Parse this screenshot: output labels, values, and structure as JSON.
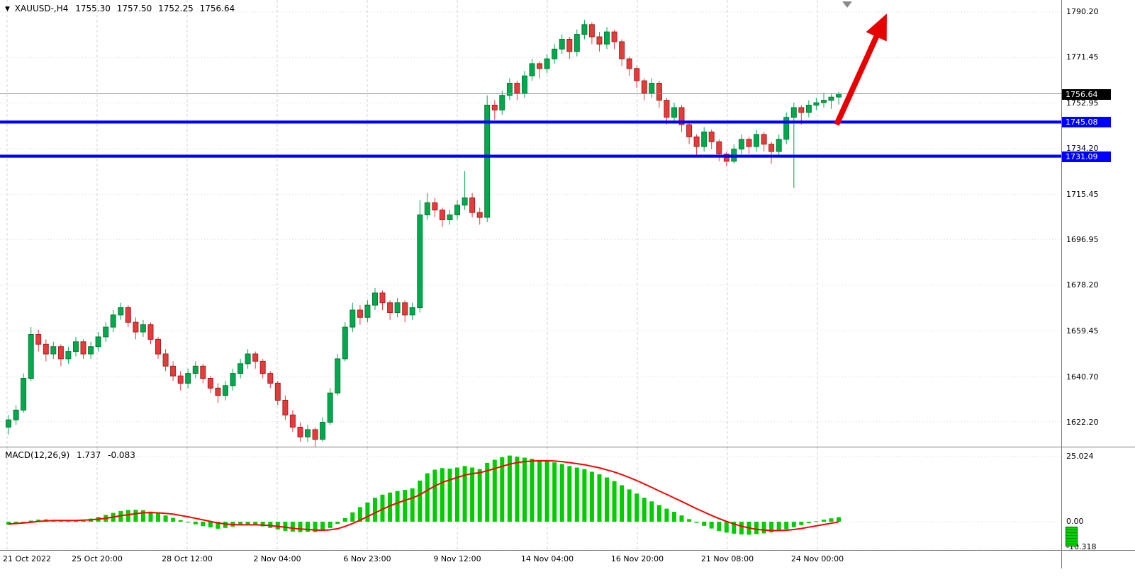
{
  "header": {
    "title": "XAUUSD-,H4",
    "open": "1755.30",
    "high": "1757.50",
    "low": "1752.25",
    "close": "1756.64"
  },
  "icons": {
    "symbol_marker": "▼"
  },
  "colors": {
    "up": "#00a94f",
    "up_border": "#0e7a32",
    "down": "#e43b3b",
    "down_border": "#a82222",
    "hline": "#0000ff",
    "arrow": "#e80000",
    "histogram": "#00cc00",
    "signal": "#ff0000",
    "grid": "#d6d6d6",
    "last_price_line": "#8c8c8c"
  },
  "chart_data": {
    "type": "candlestick",
    "symbol": "XAUUSD-",
    "timeframe": "H4",
    "ylim": [
      1612.0,
      1795.1
    ],
    "y_axis_labels": [
      "1790.20",
      "1771.45",
      "1752.95",
      "1734.20",
      "1715.45",
      "1696.95",
      "1678.20",
      "1659.45",
      "1640.70",
      "1622.20"
    ],
    "x_axis_labels": [
      "21 Oct 2022",
      "25 Oct 20:00",
      "28 Oct 12:00",
      "2 Nov 04:00",
      "6 Nov 23:00",
      "9 Nov 12:00",
      "14 Nov 04:00",
      "16 Nov 20:00",
      "21 Nov 08:00",
      "24 Nov 00:00"
    ],
    "last_price": 1756.64,
    "last_price_label": "1756.64",
    "horizontal_lines": [
      {
        "price": 1745.08,
        "label": "1745.08"
      },
      {
        "price": 1731.09,
        "label": "1731.09"
      }
    ],
    "annotation": {
      "type": "arrow-up",
      "color": "#e80000"
    },
    "candles": [
      [
        1620,
        1625,
        1617,
        1623
      ],
      [
        1623,
        1629,
        1621,
        1627
      ],
      [
        1627,
        1642,
        1626,
        1640
      ],
      [
        1640,
        1661,
        1639,
        1658
      ],
      [
        1658,
        1660,
        1651,
        1654
      ],
      [
        1654,
        1656,
        1647,
        1650
      ],
      [
        1650,
        1655,
        1648,
        1653
      ],
      [
        1653,
        1654,
        1645,
        1648
      ],
      [
        1648,
        1653,
        1646,
        1651
      ],
      [
        1651,
        1657,
        1649,
        1655
      ],
      [
        1655,
        1656,
        1648,
        1650
      ],
      [
        1650,
        1655,
        1648,
        1653
      ],
      [
        1653,
        1659,
        1651,
        1657
      ],
      [
        1657,
        1663,
        1655,
        1661
      ],
      [
        1661,
        1668,
        1659,
        1666
      ],
      [
        1666,
        1671,
        1664,
        1669
      ],
      [
        1669,
        1670,
        1661,
        1663
      ],
      [
        1663,
        1665,
        1656,
        1659
      ],
      [
        1659,
        1664,
        1657,
        1662
      ],
      [
        1662,
        1663,
        1654,
        1656
      ],
      [
        1656,
        1657,
        1648,
        1650
      ],
      [
        1650,
        1652,
        1643,
        1645
      ],
      [
        1645,
        1647,
        1639,
        1641
      ],
      [
        1641,
        1643,
        1635,
        1638
      ],
      [
        1638,
        1644,
        1636,
        1642
      ],
      [
        1642,
        1647,
        1640,
        1645
      ],
      [
        1645,
        1646,
        1638,
        1640
      ],
      [
        1640,
        1641,
        1634,
        1636
      ],
      [
        1636,
        1638,
        1630,
        1633
      ],
      [
        1633,
        1639,
        1631,
        1637
      ],
      [
        1637,
        1644,
        1635,
        1642
      ],
      [
        1642,
        1648,
        1640,
        1646
      ],
      [
        1646,
        1652,
        1644,
        1650
      ],
      [
        1650,
        1651,
        1644,
        1647
      ],
      [
        1647,
        1648,
        1640,
        1642
      ],
      [
        1642,
        1643,
        1636,
        1638
      ],
      [
        1638,
        1639,
        1629,
        1631
      ],
      [
        1631,
        1633,
        1623,
        1625
      ],
      [
        1625,
        1627,
        1618,
        1620
      ],
      [
        1620,
        1622,
        1614,
        1616
      ],
      [
        1616,
        1621,
        1614,
        1619
      ],
      [
        1619,
        1620,
        1612,
        1615
      ],
      [
        1615,
        1624,
        1614,
        1622
      ],
      [
        1622,
        1636,
        1621,
        1634
      ],
      [
        1634,
        1650,
        1633,
        1648
      ],
      [
        1648,
        1663,
        1647,
        1661
      ],
      [
        1661,
        1671,
        1659,
        1668
      ],
      [
        1668,
        1670,
        1662,
        1665
      ],
      [
        1665,
        1672,
        1663,
        1670
      ],
      [
        1670,
        1677,
        1668,
        1675
      ],
      [
        1675,
        1676,
        1668,
        1671
      ],
      [
        1671,
        1672,
        1664,
        1667
      ],
      [
        1667,
        1673,
        1665,
        1671
      ],
      [
        1671,
        1672,
        1663,
        1666
      ],
      [
        1666,
        1671,
        1664,
        1669
      ],
      [
        1669,
        1713,
        1667,
        1707
      ],
      [
        1707,
        1716,
        1705,
        1712
      ],
      [
        1712,
        1714,
        1706,
        1709
      ],
      [
        1709,
        1710,
        1702,
        1705
      ],
      [
        1705,
        1709,
        1703,
        1707
      ],
      [
        1707,
        1713,
        1705,
        1711
      ],
      [
        1711,
        1725,
        1709,
        1714
      ],
      [
        1714,
        1716,
        1706,
        1708
      ],
      [
        1708,
        1710,
        1703,
        1706
      ],
      [
        1706,
        1756,
        1704,
        1752
      ],
      [
        1752,
        1754,
        1746,
        1750
      ],
      [
        1750,
        1758,
        1748,
        1756
      ],
      [
        1756,
        1763,
        1754,
        1761
      ],
      [
        1761,
        1762,
        1754,
        1757
      ],
      [
        1757,
        1766,
        1755,
        1764
      ],
      [
        1764,
        1771,
        1762,
        1769
      ],
      [
        1769,
        1770,
        1763,
        1767
      ],
      [
        1767,
        1773,
        1765,
        1771
      ],
      [
        1771,
        1777,
        1769,
        1775
      ],
      [
        1775,
        1781,
        1773,
        1779
      ],
      [
        1779,
        1780,
        1771,
        1774
      ],
      [
        1774,
        1783,
        1772,
        1781
      ],
      [
        1781,
        1787,
        1779,
        1785
      ],
      [
        1785,
        1786,
        1777,
        1780
      ],
      [
        1780,
        1782,
        1774,
        1777
      ],
      [
        1777,
        1784,
        1775,
        1782
      ],
      [
        1782,
        1783,
        1775,
        1778
      ],
      [
        1778,
        1779,
        1768,
        1771
      ],
      [
        1771,
        1772,
        1764,
        1767
      ],
      [
        1767,
        1768,
        1759,
        1762
      ],
      [
        1762,
        1763,
        1754,
        1757
      ],
      [
        1757,
        1763,
        1755,
        1761
      ],
      [
        1761,
        1762,
        1751,
        1754
      ],
      [
        1754,
        1755,
        1744,
        1747
      ],
      [
        1747,
        1753,
        1745,
        1751
      ],
      [
        1751,
        1752,
        1741,
        1744
      ],
      [
        1744,
        1745,
        1736,
        1739
      ],
      [
        1739,
        1740,
        1731,
        1735
      ],
      [
        1735,
        1743,
        1733,
        1741
      ],
      [
        1741,
        1742,
        1734,
        1737
      ],
      [
        1737,
        1738,
        1729,
        1732
      ],
      [
        1732,
        1733,
        1727,
        1729
      ],
      [
        1729,
        1736,
        1728,
        1734
      ],
      [
        1734,
        1740,
        1732,
        1738
      ],
      [
        1738,
        1739,
        1732,
        1735
      ],
      [
        1735,
        1742,
        1733,
        1740
      ],
      [
        1740,
        1741,
        1733,
        1736
      ],
      [
        1736,
        1737,
        1728,
        1733
      ],
      [
        1733,
        1740,
        1731,
        1738
      ],
      [
        1738,
        1749,
        1736,
        1747
      ],
      [
        1747,
        1753,
        1718,
        1751
      ],
      [
        1751,
        1752,
        1744,
        1749
      ],
      [
        1749,
        1754,
        1747,
        1752
      ],
      [
        1752,
        1755,
        1750,
        1753
      ],
      [
        1753,
        1757,
        1751,
        1754
      ],
      [
        1754,
        1756.5,
        1750.5,
        1755.3
      ],
      [
        1755.3,
        1757.5,
        1752.25,
        1756.64
      ]
    ],
    "indicator": {
      "name": "MACD",
      "params": "12,26,9",
      "label": "MACD(12,26,9)",
      "value": "1.737",
      "signal_value": "-0.083",
      "y_axis_labels": [
        "25.024",
        "0.00",
        "-10.318"
      ],
      "ylim": [
        -11.2,
        28.6
      ],
      "histogram": [
        -1.2,
        -0.8,
        -0.3,
        0.4,
        0.8,
        0.9,
        0.7,
        0.4,
        0.3,
        0.5,
        0.8,
        1.2,
        1.8,
        2.6,
        3.4,
        4.1,
        4.5,
        4.6,
        4.4,
        3.9,
        3.2,
        2.4,
        1.5,
        0.6,
        -0.3,
        -1.0,
        -1.7,
        -2.2,
        -2.7,
        -2.4,
        -1.9,
        -1.4,
        -1.0,
        -1.3,
        -1.8,
        -2.4,
        -3.0,
        -3.5,
        -3.8,
        -4.0,
        -3.9,
        -4.0,
        -3.5,
        -2.4,
        -0.8,
        1.4,
        3.6,
        5.6,
        7.4,
        9.2,
        10.4,
        11.2,
        11.8,
        12.2,
        12.8,
        15.8,
        18.6,
        20.0,
        20.6,
        20.4,
        20.8,
        21.4,
        20.8,
        20.2,
        22.6,
        23.8,
        24.8,
        25.4,
        25.0,
        24.6,
        24.2,
        23.6,
        23.2,
        22.8,
        22.2,
        21.4,
        20.8,
        20.2,
        19.2,
        18.2,
        17.0,
        15.6,
        14.0,
        12.4,
        10.8,
        9.2,
        7.8,
        6.4,
        5.0,
        3.8,
        2.4,
        1.0,
        -0.4,
        -1.6,
        -2.6,
        -3.6,
        -4.2,
        -4.6,
        -4.9,
        -5.0,
        -4.8,
        -4.5,
        -4.1,
        -3.6,
        -2.9,
        -2.1,
        -1.3,
        -0.5,
        0.2,
        0.8,
        1.3,
        1.737
      ],
      "signal": [
        -0.9,
        -0.7,
        -0.5,
        -0.2,
        0.1,
        0.3,
        0.5,
        0.5,
        0.5,
        0.5,
        0.6,
        0.7,
        1.0,
        1.3,
        1.8,
        2.3,
        2.7,
        3.1,
        3.4,
        3.5,
        3.4,
        3.2,
        2.9,
        2.4,
        1.9,
        1.3,
        0.7,
        0.1,
        -0.5,
        -0.9,
        -1.1,
        -1.2,
        -1.2,
        -1.2,
        -1.3,
        -1.5,
        -1.8,
        -2.1,
        -2.5,
        -2.8,
        -3.0,
        -3.2,
        -3.3,
        -3.1,
        -2.7,
        -1.8,
        -0.7,
        0.6,
        2.0,
        3.4,
        4.8,
        6.1,
        7.2,
        8.2,
        9.1,
        10.4,
        12.1,
        13.7,
        15.1,
        16.1,
        17.0,
        17.9,
        18.5,
        18.8,
        19.6,
        20.4,
        21.3,
        22.1,
        22.7,
        23.1,
        23.3,
        23.4,
        23.4,
        23.3,
        23.1,
        22.7,
        22.3,
        21.9,
        21.3,
        20.7,
        19.9,
        19.1,
        18.1,
        17.0,
        15.8,
        14.5,
        13.2,
        11.8,
        10.5,
        9.1,
        7.8,
        6.4,
        5.0,
        3.7,
        2.4,
        1.2,
        0.1,
        -0.9,
        -1.7,
        -2.4,
        -2.9,
        -3.2,
        -3.4,
        -3.4,
        -3.3,
        -3.0,
        -2.6,
        -2.1,
        -1.6,
        -1.1,
        -0.6,
        -0.083
      ]
    }
  }
}
